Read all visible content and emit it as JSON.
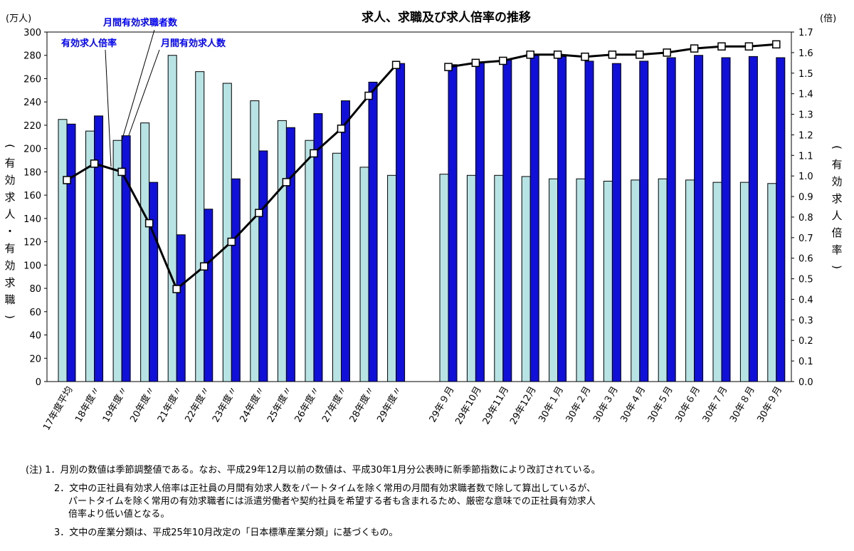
{
  "chart_data": {
    "type": "bar+line",
    "title": "求人、求職及び求人倍率の推移",
    "left_unit": "(万人)",
    "right_unit": "(倍)",
    "left_axis_label": "(有効求人・有効求職)",
    "right_axis_label": "(有効求人倍率)",
    "left_ylim": [
      0,
      300
    ],
    "left_ticks": [
      "0",
      "20",
      "40",
      "60",
      "80",
      "100",
      "120",
      "140",
      "160",
      "180",
      "200",
      "220",
      "240",
      "260",
      "280",
      "300"
    ],
    "right_ylim": [
      0,
      1.7
    ],
    "right_ticks": [
      "0.0",
      "0.1",
      "0.2",
      "0.3",
      "0.4",
      "0.5",
      "0.6",
      "0.7",
      "0.8",
      "0.9",
      "1.0",
      "1.1",
      "1.2",
      "1.3",
      "1.4",
      "1.5",
      "1.6",
      "1.7"
    ],
    "group1": {
      "categories": [
        "17年度平均",
        "18年度〃",
        "19年度〃",
        "20年度〃",
        "21年度〃",
        "22年度〃",
        "23年度〃",
        "24年度〃",
        "25年度〃",
        "26年度〃",
        "27年度〃",
        "28年度〃",
        "29年度〃"
      ],
      "job_seekers": [
        225,
        215,
        207,
        222,
        280,
        266,
        256,
        241,
        224,
        207,
        196,
        184,
        177
      ],
      "job_openings": [
        221,
        228,
        211,
        171,
        126,
        148,
        174,
        198,
        218,
        230,
        241,
        257,
        273
      ],
      "ratio": [
        0.98,
        1.06,
        1.02,
        0.77,
        0.45,
        0.56,
        0.68,
        0.82,
        0.97,
        1.11,
        1.23,
        1.39,
        1.54
      ]
    },
    "group2": {
      "categories": [
        "29年９月",
        "29年10月",
        "29年11月",
        "29年12月",
        "30年１月",
        "30年２月",
        "30年３月",
        "30年４月",
        "30年５月",
        "30年６月",
        "30年７月",
        "30年８月",
        "30年９月"
      ],
      "job_seekers": [
        178,
        177,
        177,
        176,
        174,
        174,
        172,
        173,
        174,
        173,
        171,
        171,
        170
      ],
      "job_openings": [
        272,
        274,
        276,
        280,
        279,
        275,
        273,
        275,
        278,
        280,
        278,
        279,
        278
      ],
      "ratio": [
        1.53,
        1.55,
        1.56,
        1.59,
        1.59,
        1.58,
        1.59,
        1.59,
        1.6,
        1.62,
        1.63,
        1.63,
        1.64
      ]
    },
    "annotations": {
      "job_seekers": "月間有効求職者数",
      "ratio": "有効求人倍率",
      "job_openings": "月間有効求人数"
    },
    "colors": {
      "job_seekers_fill": "#b7e3e4",
      "job_openings_fill": "#1010d8",
      "ratio_line": "#000000",
      "annotation_text": "#0000ff"
    },
    "grid": false
  },
  "notes": {
    "n1": "(注) 1．月別の数値は季節調整値である。なお、平成29年12月以前の数値は、平成30年1月分公表時に新季節指数により改訂されている。",
    "n2_1": "2．文中の正社員有効求人倍率は正社員の月間有効求人数をパートタイムを除く常用の月間有効求職者数で除して算出しているが、",
    "n2_2": "パートタイムを除く常用の有効求職者には派遣労働者や契約社員を希望する者も含まれるため、厳密な意味での正社員有効求人",
    "n2_3": "倍率より低い値となる。",
    "n3": "3．文中の産業分類は、平成25年10月改定の「日本標準産業分類」に基づくもの。"
  }
}
